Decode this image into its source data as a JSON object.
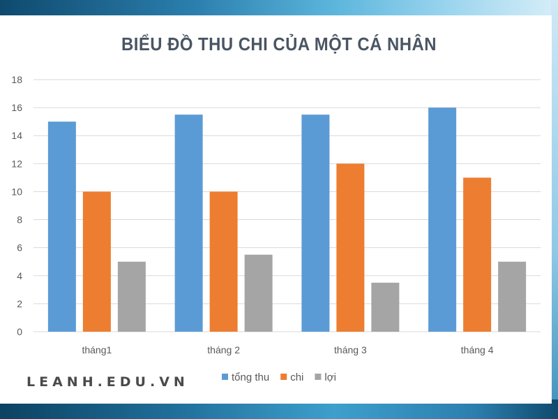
{
  "chart_data": {
    "type": "bar",
    "title": "BIỂU ĐỒ THU CHI CỦA MỘT CÁ NHÂN",
    "categories": [
      "tháng1",
      "tháng 2",
      "tháng 3",
      "tháng 4"
    ],
    "series": [
      {
        "name": "tổng thu",
        "color": "#5b9bd5",
        "values": [
          15,
          15.5,
          15.5,
          16
        ]
      },
      {
        "name": "chi",
        "color": "#ed7d31",
        "values": [
          10,
          10,
          12,
          11
        ]
      },
      {
        "name": "lợi",
        "color": "#a5a5a5",
        "values": [
          5,
          5.5,
          3.5,
          5
        ]
      }
    ],
    "ylim": [
      0,
      18
    ],
    "yticks": [
      "0",
      "2",
      "4",
      "6",
      "8",
      "10",
      "12",
      "14",
      "16",
      "18"
    ],
    "grid": true,
    "legend": "bottom"
  },
  "watermark": "LEANH.EDU.VN"
}
